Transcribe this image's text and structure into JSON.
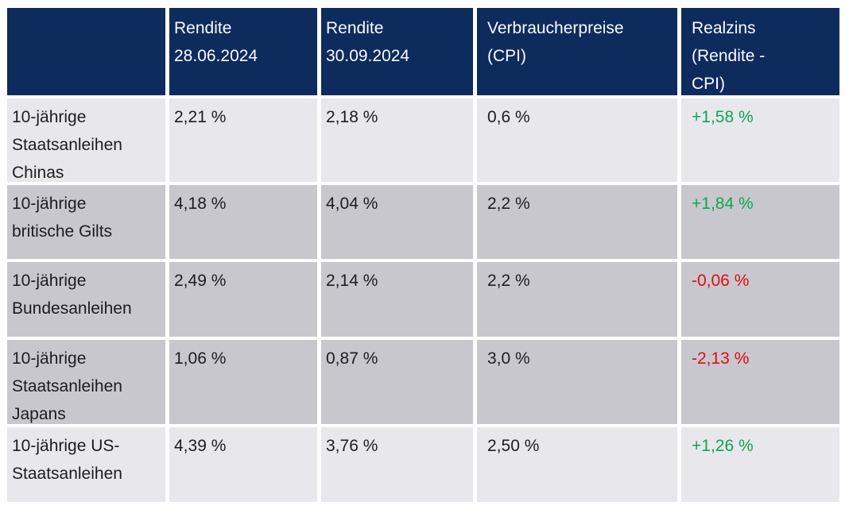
{
  "table": {
    "header": {
      "asset": "",
      "rendite_1": "Rendite\n28.06.2024",
      "rendite_2": "Rendite\n30.09.2024",
      "cpi": "Verbraucherpreise\n(CPI)",
      "realzins": "Realzins\n(Rendite -\nCPI)"
    },
    "rows": [
      {
        "label": "10-jährige\nStaatsanleihen\nChinas",
        "rendite_1": "2,21 %",
        "rendite_2": "2,18 %",
        "cpi": "0,6 %",
        "realzins": "+1,58 %",
        "trend": "positive"
      },
      {
        "label": "10-jährige\nbritische Gilts",
        "rendite_1": "4,18 %",
        "rendite_2": "4,04 %",
        "cpi": "2,2 %",
        "realzins": "+1,84 %",
        "trend": "positive"
      },
      {
        "label": "10-jährige\nBundesanleihen",
        "rendite_1": "2,49 %",
        "rendite_2": "2,14 %",
        "cpi": "2,2 %",
        "realzins": "-0,06 %",
        "trend": "negative"
      },
      {
        "label": "10-jährige\nStaatsanleihen\nJapans",
        "rendite_1": "1,06 %",
        "rendite_2": "0,87 %",
        "cpi": "3,0 %",
        "realzins": "-2,13 %",
        "trend": "negative"
      },
      {
        "label": "10-jährige US-\nStaatsanleihen",
        "rendite_1": "4,39 %",
        "rendite_2": "3,76 %",
        "cpi": "2,50 %",
        "realzins": "+1,26 %",
        "trend": "positive"
      }
    ],
    "colors": {
      "header_bg": "#0e2b5e",
      "header_text": "#fafbfd",
      "row_light_bg": "#e8e7ec",
      "row_dark_bg": "#c8c7cd",
      "body_text": "#1d1d1f",
      "positive": "#0fa651",
      "negative": "#e20c12"
    }
  },
  "chart_data": {
    "type": "table",
    "columns": [
      "",
      "Rendite 28.06.2024",
      "Rendite 30.09.2024",
      "Verbraucherpreise (CPI)",
      "Realzins (Rendite - CPI)"
    ],
    "rows": [
      [
        "10-jährige Staatsanleihen Chinas",
        "2,21 %",
        "2,18 %",
        "0,6 %",
        "+1,58 %"
      ],
      [
        "10-jährige britische Gilts",
        "4,18 %",
        "4,04 %",
        "2,2 %",
        "+1,84 %"
      ],
      [
        "10-jährige Bundesanleihen",
        "2,49 %",
        "2,14 %",
        "2,2 %",
        "-0,06 %"
      ],
      [
        "10-jährige Staatsanleihen Japans",
        "1,06 %",
        "0,87 %",
        "3,0 %",
        "-2,13 %"
      ],
      [
        "10-jährige US-Staatsanleihen",
        "4,39 %",
        "3,76 %",
        "2,50 %",
        "+1,26 %"
      ]
    ],
    "numeric": {
      "rendite_2024_06_28_pct": [
        2.21,
        4.18,
        2.49,
        1.06,
        4.39
      ],
      "rendite_2024_09_30_pct": [
        2.18,
        4.04,
        2.14,
        0.87,
        3.76
      ],
      "cpi_pct": [
        0.6,
        2.2,
        2.2,
        3.0,
        2.5
      ],
      "realzins_pct": [
        1.58,
        1.84,
        -0.06,
        -2.13,
        1.26
      ]
    }
  }
}
